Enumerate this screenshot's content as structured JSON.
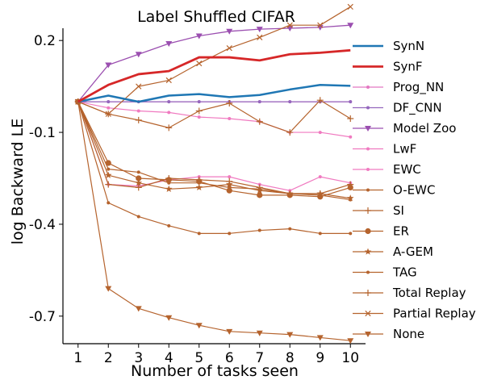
{
  "chart_data": {
    "type": "line",
    "title": "Label Shuffled CIFAR",
    "xlabel": "Number of tasks seen",
    "ylabel": "log Backward LE",
    "x": [
      1,
      2,
      3,
      4,
      5,
      6,
      7,
      8,
      9,
      10
    ],
    "xlim": [
      0.5,
      10.5
    ],
    "ylim": [
      -0.79,
      0.24
    ],
    "yticks": [
      0.2,
      -0.1,
      -0.4,
      -0.7
    ],
    "ytick_labels": [
      "0.2",
      "-0.1",
      "-0.4",
      "-0.7"
    ],
    "grid": false,
    "legend_position": "right",
    "series": [
      {
        "name": "SynN",
        "color": "#1f77b4",
        "marker": "none",
        "width": 2.5,
        "values": [
          0.0,
          0.02,
          0.0,
          0.02,
          0.025,
          0.015,
          0.022,
          0.04,
          0.055,
          0.052
        ]
      },
      {
        "name": "SynF",
        "color": "#d62728",
        "marker": "none",
        "width": 2.8,
        "values": [
          0.0,
          0.055,
          0.09,
          0.1,
          0.145,
          0.145,
          0.135,
          0.155,
          0.16,
          0.168
        ]
      },
      {
        "name": "Prog_NN",
        "color": "#e377c2",
        "marker": "dot",
        "width": 1.2,
        "values": [
          0.0,
          0.0,
          0.0,
          0.0,
          0.0,
          0.0,
          0.0,
          0.0,
          0.0,
          0.0
        ]
      },
      {
        "name": "DF_CNN",
        "color": "#9467bd",
        "marker": "dot",
        "width": 1.2,
        "values": [
          0.0,
          0.0,
          0.0,
          0.0,
          0.0,
          0.0,
          0.0,
          0.0,
          0.0,
          0.0
        ]
      },
      {
        "name": "Model Zoo",
        "color": "#9b4fb0",
        "marker": "triangle-down",
        "width": 1.3,
        "values": [
          0.0,
          0.12,
          0.155,
          0.19,
          0.215,
          0.23,
          0.237,
          0.24,
          0.243,
          0.25
        ]
      },
      {
        "name": "LwF",
        "color": "#f07ac0",
        "marker": "dot",
        "width": 1.2,
        "values": [
          0.0,
          -0.02,
          -0.03,
          -0.035,
          -0.05,
          -0.055,
          -0.065,
          -0.1,
          -0.1,
          -0.115
        ]
      },
      {
        "name": "EWC",
        "color": "#f07ac0",
        "marker": "dot",
        "width": 1.2,
        "values": [
          0.0,
          -0.27,
          -0.275,
          -0.255,
          -0.245,
          -0.245,
          -0.27,
          -0.29,
          -0.245,
          -0.265
        ]
      },
      {
        "name": "O-EWC",
        "color": "#b5632d",
        "marker": "dot",
        "width": 1.2,
        "values": [
          0.0,
          -0.22,
          -0.23,
          -0.265,
          -0.265,
          -0.28,
          -0.285,
          -0.3,
          -0.305,
          -0.32
        ]
      },
      {
        "name": "SI",
        "color": "#b5632d",
        "marker": "plus",
        "width": 1.2,
        "values": [
          0.0,
          -0.27,
          -0.28,
          -0.25,
          -0.255,
          -0.26,
          -0.28,
          -0.3,
          -0.3,
          -0.27
        ]
      },
      {
        "name": "ER",
        "color": "#b5632d",
        "marker": "dot-large",
        "width": 1.2,
        "values": [
          0.0,
          -0.2,
          -0.25,
          -0.255,
          -0.26,
          -0.29,
          -0.305,
          -0.305,
          -0.31,
          -0.28
        ]
      },
      {
        "name": "A-GEM",
        "color": "#b5632d",
        "marker": "star",
        "width": 1.2,
        "values": [
          0.0,
          -0.24,
          -0.265,
          -0.285,
          -0.28,
          -0.27,
          -0.29,
          -0.3,
          -0.3,
          -0.315
        ]
      },
      {
        "name": "TAG",
        "color": "#b5632d",
        "marker": "dot",
        "width": 1.2,
        "values": [
          0.0,
          -0.33,
          -0.375,
          -0.405,
          -0.43,
          -0.43,
          -0.42,
          -0.415,
          -0.43,
          -0.43
        ]
      },
      {
        "name": "Total Replay",
        "color": "#b5632d",
        "marker": "plus",
        "width": 1.2,
        "values": [
          0.0,
          -0.04,
          -0.06,
          -0.085,
          -0.03,
          -0.005,
          -0.065,
          -0.1,
          0.005,
          -0.055
        ]
      },
      {
        "name": "Partial Replay",
        "color": "#b5632d",
        "marker": "x",
        "width": 1.2,
        "values": [
          0.0,
          -0.04,
          0.05,
          0.07,
          0.125,
          0.175,
          0.21,
          0.25,
          0.25,
          0.31
        ]
      },
      {
        "name": "None",
        "color": "#b5632d",
        "marker": "triangle-down",
        "width": 1.2,
        "values": [
          0.0,
          -0.61,
          -0.675,
          -0.705,
          -0.73,
          -0.75,
          -0.755,
          -0.76,
          -0.77,
          -0.78
        ]
      }
    ]
  }
}
